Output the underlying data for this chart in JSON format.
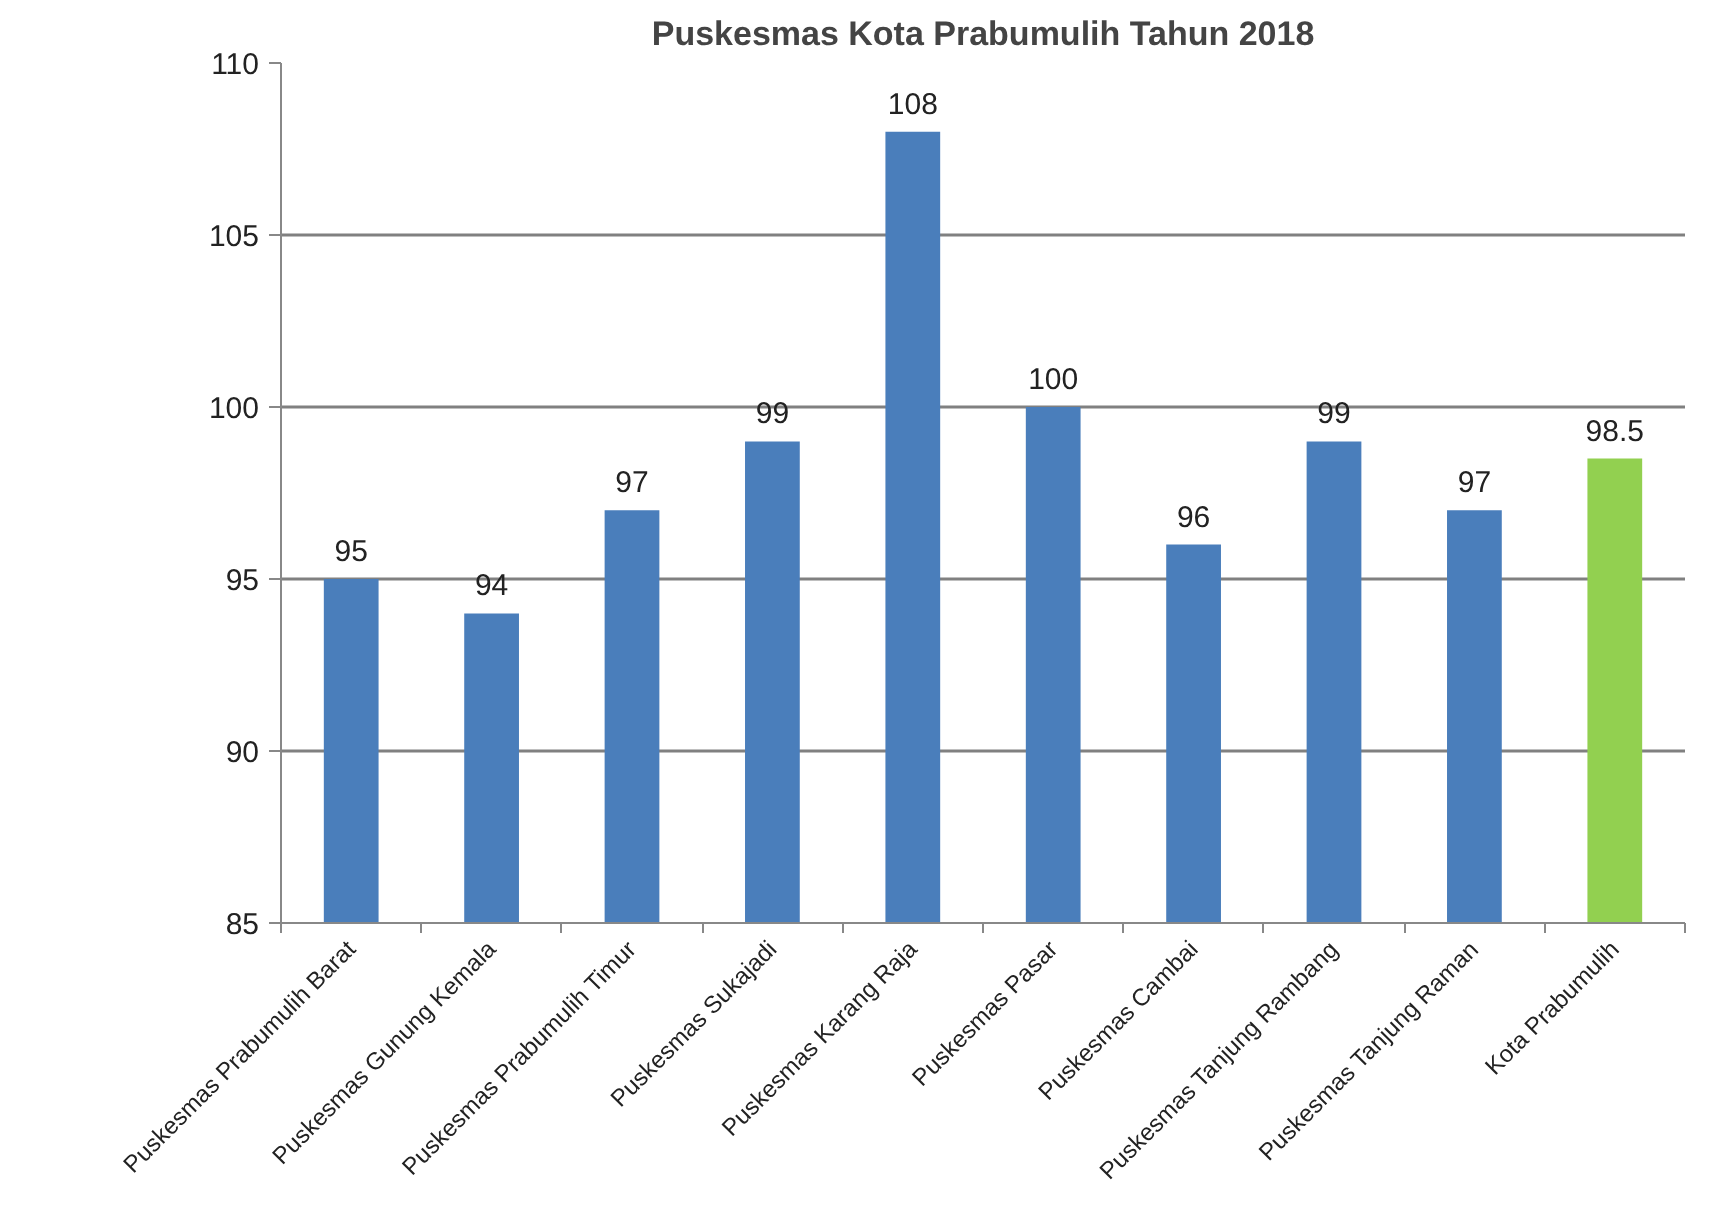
{
  "chart_data": {
    "type": "bar",
    "title": "Puskesmas Kota Prabumulih Tahun 2018",
    "categories": [
      "Puskesmas Prabumulih Barat",
      "Puskesmas Gunung Kemala",
      "Puskesmas Prabumulih Timur",
      "Puskesmas Sukajadi",
      "Puskesmas Karang Raja",
      "Puskesmas Pasar",
      "Puskesmas Cambai",
      "Puskesmas Tanjung Rambang",
      "Puskesmas Tanjung Raman",
      "Kota Prabumulih"
    ],
    "values": [
      95,
      94,
      97,
      99,
      108,
      100,
      96,
      99,
      97,
      98.5
    ],
    "colors": [
      "#4a7ebb",
      "#4a7ebb",
      "#4a7ebb",
      "#4a7ebb",
      "#4a7ebb",
      "#4a7ebb",
      "#4a7ebb",
      "#4a7ebb",
      "#4a7ebb",
      "#92d050"
    ],
    "ylim": [
      85,
      110
    ],
    "yticks": [
      85,
      90,
      95,
      100,
      105,
      110
    ],
    "grid": "y",
    "data_labels": true
  }
}
